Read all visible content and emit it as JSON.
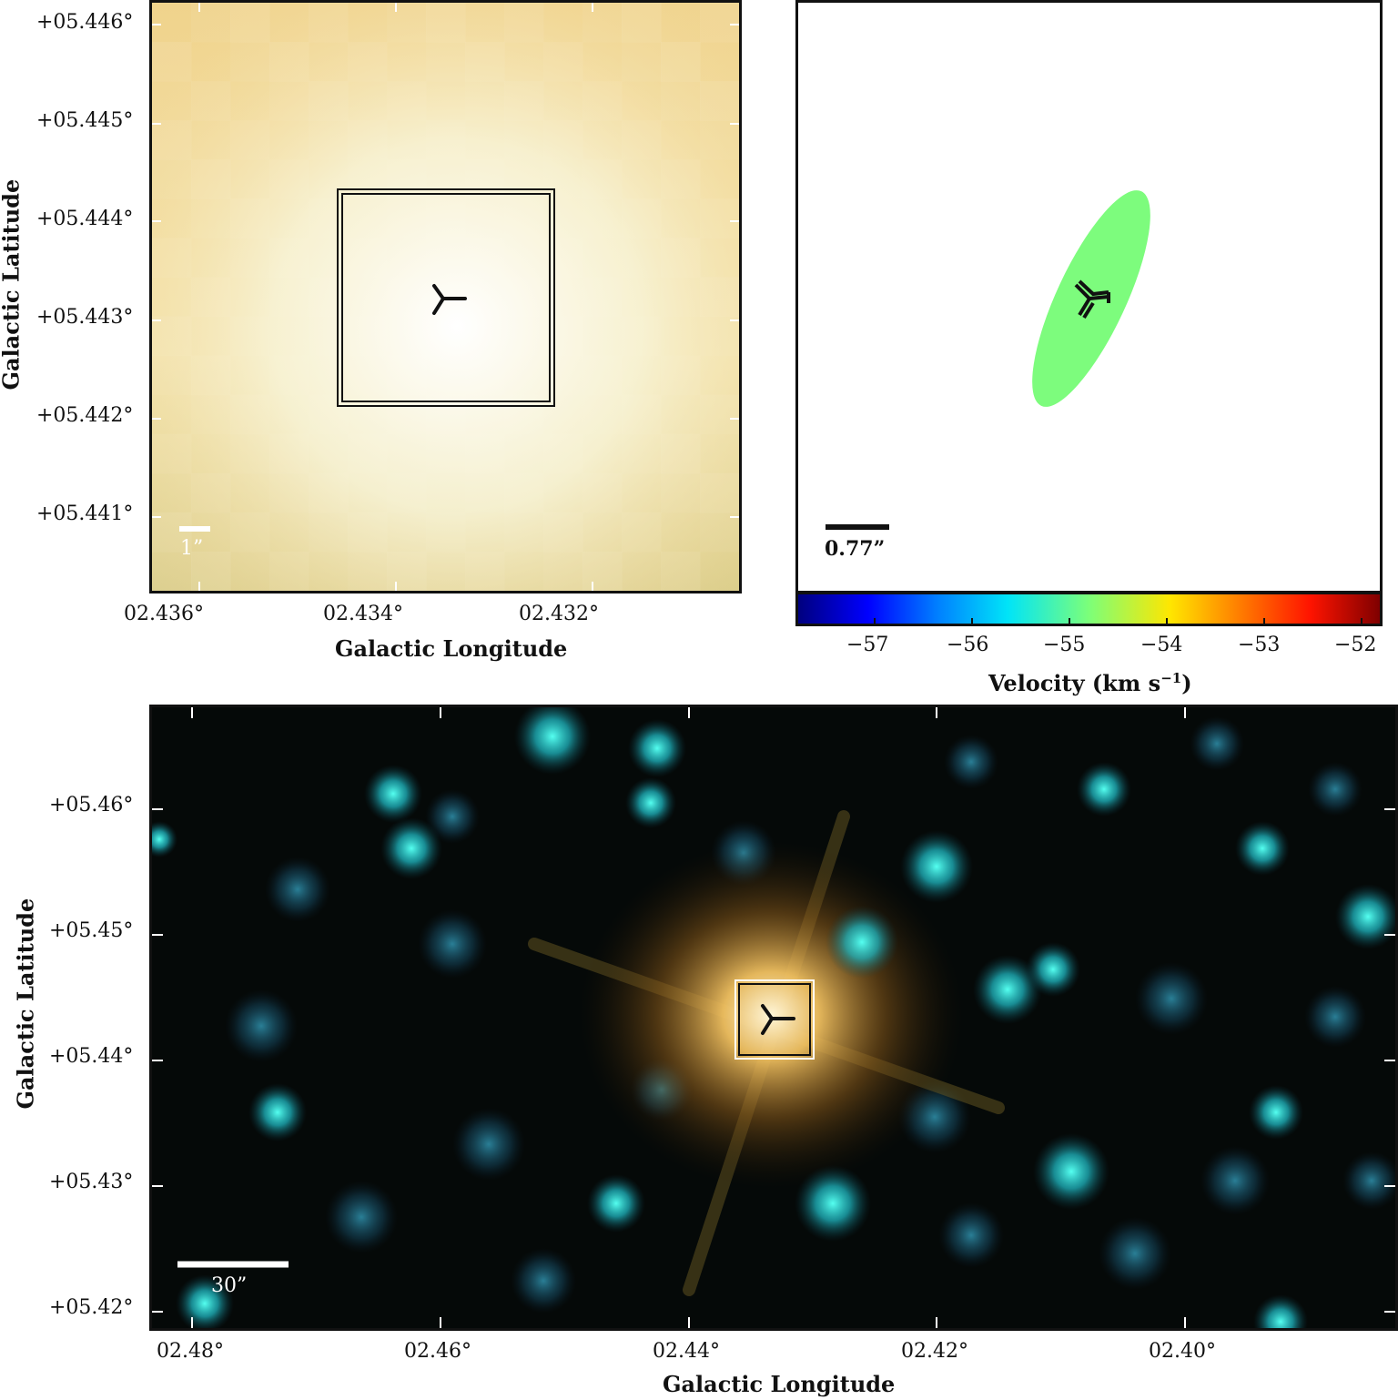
{
  "top_left": {
    "y_ticks": [
      "+05.446°",
      "+05.445°",
      "+05.444°",
      "+05.443°",
      "+05.442°",
      "+05.441°"
    ],
    "x_ticks": [
      "02.436°",
      "02.434°",
      "02.432°"
    ],
    "x_label": "Galactic Longitude",
    "y_label": "Galactic Latitude",
    "scale_label": "1”"
  },
  "top_right": {
    "scale_label": "0.77”",
    "colorbar_ticks": [
      "−57",
      "−56",
      "−55",
      "−54",
      "−53",
      "−52"
    ],
    "colorbar_label": "Velocity (km s",
    "colorbar_label_sup": "−1",
    "colorbar_label_end": ")",
    "ellipse_color": "#7dfc7d"
  },
  "bottom": {
    "y_ticks": [
      "+05.46°",
      "+05.45°",
      "+05.44°",
      "+05.43°",
      "+05.42°"
    ],
    "x_ticks": [
      "02.48°",
      "02.46°",
      "02.44°",
      "02.42°",
      "02.40°"
    ],
    "x_label": "Galactic Longitude",
    "y_label": "Galactic Latitude",
    "scale_label": "30”"
  }
}
